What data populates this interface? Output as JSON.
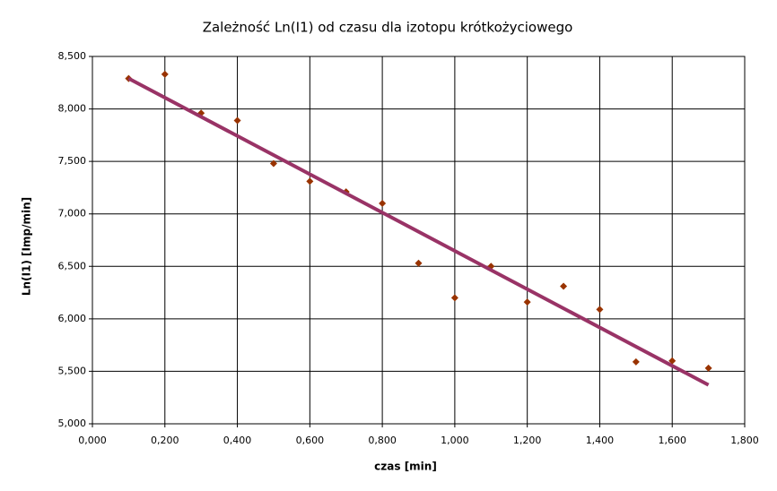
{
  "chart_data": {
    "type": "scatter",
    "title": "Zależność Ln(I1) od czasu dla izotopu krótkożyciowego",
    "x_label": "czas [min]",
    "y_label": "Ln(I1) [Imp/min]",
    "xlim": [
      0,
      1.8
    ],
    "ylim": [
      5,
      8.5
    ],
    "xticks": [
      {
        "value": 0,
        "label": "0,000"
      },
      {
        "value": 0.2,
        "label": "0,200"
      },
      {
        "value": 0.4,
        "label": "0,400"
      },
      {
        "value": 0.6,
        "label": "0,600"
      },
      {
        "value": 0.8,
        "label": "0,800"
      },
      {
        "value": 1.0,
        "label": "1,000"
      },
      {
        "value": 1.2,
        "label": "1,200"
      },
      {
        "value": 1.4,
        "label": "1,400"
      },
      {
        "value": 1.6,
        "label": "1,600"
      },
      {
        "value": 1.8,
        "label": "1,800"
      }
    ],
    "yticks": [
      {
        "value": 5,
        "label": "5,000"
      },
      {
        "value": 5.5,
        "label": "5,500"
      },
      {
        "value": 6,
        "label": "6,000"
      },
      {
        "value": 6.5,
        "label": "6,500"
      },
      {
        "value": 7,
        "label": "7,000"
      },
      {
        "value": 7.5,
        "label": "7,500"
      },
      {
        "value": 8,
        "label": "8,000"
      },
      {
        "value": 8.5,
        "label": "8,500"
      }
    ],
    "grid": true,
    "series": [
      {
        "color": "#993300",
        "marker": "diamond",
        "x": [
          0.1,
          0.2,
          0.3,
          0.4,
          0.5,
          0.6,
          0.7,
          0.8,
          0.9,
          1.0,
          1.1,
          1.2,
          1.3,
          1.4,
          1.5,
          1.6,
          1.7
        ],
        "values": [
          8.29,
          8.33,
          7.96,
          7.89,
          7.48,
          7.31,
          7.21,
          7.1,
          6.53,
          6.2,
          6.5,
          6.16,
          6.31,
          6.09,
          5.59,
          5.6,
          5.53
        ]
      },
      {
        "color": "#993366",
        "marker": "line",
        "x": [
          0.1,
          1.7
        ],
        "values": [
          8.29,
          5.37
        ]
      }
    ]
  }
}
